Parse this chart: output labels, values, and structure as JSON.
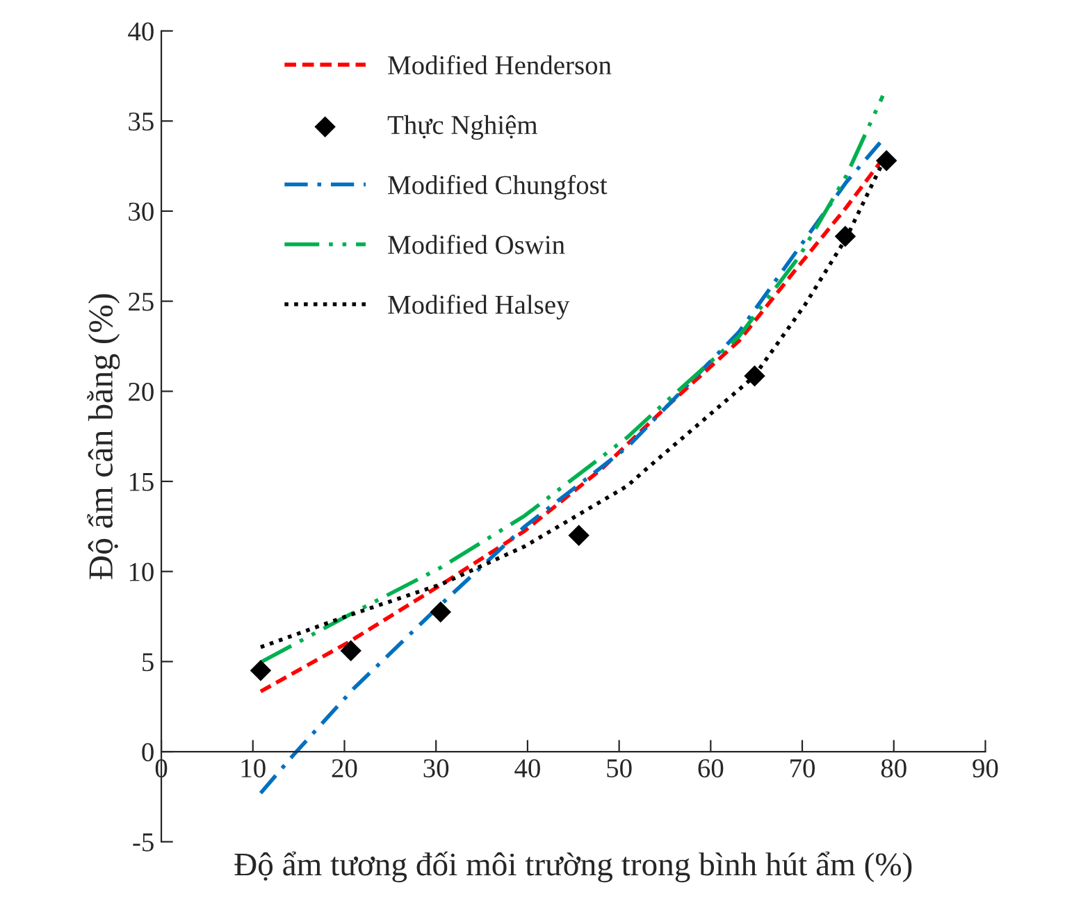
{
  "chart_data": {
    "type": "line",
    "xlabel": "Độ ẩm tương đối môi trường trong bình hút ẩm (%)",
    "ylabel": "Độ ẩm cân bằng (%)",
    "xlim": [
      0,
      90
    ],
    "xticks": [
      0,
      10,
      20,
      30,
      40,
      50,
      60,
      70,
      80,
      90
    ],
    "ylim": [
      -5,
      40
    ],
    "yticks": [
      -5,
      0,
      5,
      10,
      15,
      20,
      25,
      30,
      35,
      40
    ],
    "grid": false,
    "legend": "top left",
    "series": [
      {
        "name": "Modified Henderson",
        "color": "#ff0000",
        "line_style": "dashed",
        "marker": "none",
        "x": [
          10.85,
          20.4,
          30.6,
          39.7,
          48.1,
          55.5,
          63.1,
          69.2,
          74.8,
          78.8
        ],
        "values": [
          3.34,
          6.06,
          9.28,
          12.26,
          15.7,
          19.3,
          22.8,
          26.7,
          30.2,
          32.9
        ]
      },
      {
        "name": "Thực Nghiệm",
        "type": "scatter",
        "color": "#000000",
        "marker": "diamond",
        "x": [
          10.85,
          20.7,
          30.5,
          45.6,
          64.8,
          74.7,
          79.2
        ],
        "values": [
          4.5,
          5.6,
          7.75,
          12.0,
          20.85,
          28.6,
          32.8
        ]
      },
      {
        "name": "Modified Chungfost",
        "color": "#0070c0",
        "line_style": "dashdot",
        "marker": "none",
        "x": [
          10.85,
          14.4,
          21.0,
          30.6,
          39.7,
          50.9,
          63.1,
          69.7,
          74.8,
          78.5
        ],
        "values": [
          -2.3,
          -0.2,
          3.5,
          8.2,
          12.5,
          16.9,
          23.3,
          28.0,
          31.6,
          33.8
        ]
      },
      {
        "name": "Modified Oswin",
        "color": "#00b050",
        "line_style": "longdashdotdot",
        "marker": "none",
        "x": [
          10.85,
          20.4,
          30.6,
          39.7,
          50.9,
          55.5,
          63.1,
          69.7,
          74.8,
          78.8
        ],
        "values": [
          4.96,
          7.56,
          10.24,
          13.1,
          17.45,
          19.6,
          23.05,
          27.5,
          31.95,
          36.4
        ]
      },
      {
        "name": "Modified Halsey",
        "color": "#000000",
        "line_style": "dotted",
        "marker": "none",
        "x": [
          10.85,
          20.4,
          30.6,
          39.7,
          50.9,
          53.0,
          64.7,
          70.3,
          74.8,
          78.8
        ],
        "values": [
          5.8,
          7.55,
          9.3,
          11.4,
          14.75,
          15.7,
          20.8,
          24.8,
          28.5,
          32.7
        ]
      }
    ]
  }
}
